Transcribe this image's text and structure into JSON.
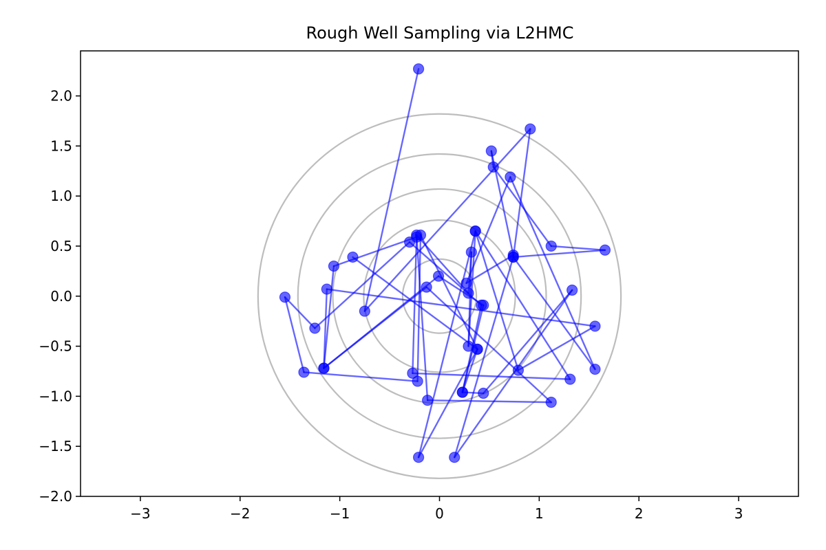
{
  "chart_data": {
    "type": "scatter",
    "title": "Rough Well Sampling via L2HMC",
    "xlabel": "",
    "ylabel": "",
    "xlim": [
      -3.6,
      3.6
    ],
    "ylim": [
      -2.0,
      2.45
    ],
    "grid": false,
    "x_ticks": [
      -3,
      -2,
      -1,
      0,
      1,
      2,
      3
    ],
    "x_tick_labels": [
      "−3",
      "−2",
      "−1",
      "0",
      "1",
      "2",
      "3"
    ],
    "y_ticks": [
      -2.0,
      -1.5,
      -1.0,
      -0.5,
      0.0,
      0.5,
      1.0,
      1.5,
      2.0
    ],
    "y_tick_labels": [
      "−2.0",
      "−1.5",
      "−1.0",
      "−0.5",
      "0.0",
      "0.5",
      "1.0",
      "1.5",
      "2.0"
    ],
    "contour_radii": [
      0.37,
      0.76,
      1.07,
      1.42,
      1.82
    ],
    "contour_color": "#bdbdbd",
    "series_color": "#0000ff",
    "trajectory": [
      {
        "x": -0.21,
        "y": 2.27
      },
      {
        "x": -0.75,
        "y": -0.15
      },
      {
        "x": 0.91,
        "y": 1.67
      },
      {
        "x": 0.74,
        "y": 0.39
      },
      {
        "x": 1.56,
        "y": -0.73
      },
      {
        "x": 0.71,
        "y": 1.19
      },
      {
        "x": 0.27,
        "y": 0.13
      },
      {
        "x": 0.74,
        "y": 0.41
      },
      {
        "x": 0.52,
        "y": 1.45
      },
      {
        "x": 0.54,
        "y": 1.29
      },
      {
        "x": 1.12,
        "y": 0.5
      },
      {
        "x": 1.66,
        "y": 0.46
      },
      {
        "x": 0.74,
        "y": 0.39
      },
      {
        "x": 0.15,
        "y": -1.61
      },
      {
        "x": 1.33,
        "y": 0.06
      },
      {
        "x": 0.44,
        "y": -0.97
      },
      {
        "x": 0.23,
        "y": -0.96
      },
      {
        "x": 0.42,
        "y": -0.09
      },
      {
        "x": -0.3,
        "y": 0.54
      },
      {
        "x": -1.25,
        "y": -0.32
      },
      {
        "x": -1.55,
        "y": -0.01
      },
      {
        "x": -1.36,
        "y": -0.76
      },
      {
        "x": -0.22,
        "y": -0.85
      },
      {
        "x": -0.19,
        "y": 0.61
      },
      {
        "x": 0.38,
        "y": -0.53
      },
      {
        "x": -0.21,
        "y": -1.61
      },
      {
        "x": 0.36,
        "y": 0.65
      },
      {
        "x": 0.29,
        "y": -0.5
      },
      {
        "x": 0.32,
        "y": 0.44
      },
      {
        "x": 0.29,
        "y": 0.03
      },
      {
        "x": -0.23,
        "y": 0.61
      },
      {
        "x": -0.12,
        "y": -1.04
      },
      {
        "x": 1.12,
        "y": -1.06
      },
      {
        "x": -0.13,
        "y": 0.09
      },
      {
        "x": -1.16,
        "y": -0.72
      },
      {
        "x": -1.13,
        "y": 0.07
      },
      {
        "x": 1.56,
        "y": -0.3
      },
      {
        "x": 0.79,
        "y": -0.74
      },
      {
        "x": 0.36,
        "y": 0.65
      },
      {
        "x": 1.31,
        "y": -0.83
      },
      {
        "x": -0.27,
        "y": -0.77
      },
      {
        "x": -0.23,
        "y": 0.59
      },
      {
        "x": -1.06,
        "y": 0.3
      },
      {
        "x": -1.16,
        "y": -0.72
      },
      {
        "x": -0.01,
        "y": 0.2
      },
      {
        "x": 0.44,
        "y": -0.09
      },
      {
        "x": 0.23,
        "y": -0.96
      },
      {
        "x": 0.38,
        "y": -0.53
      },
      {
        "x": -0.87,
        "y": 0.39
      }
    ]
  }
}
